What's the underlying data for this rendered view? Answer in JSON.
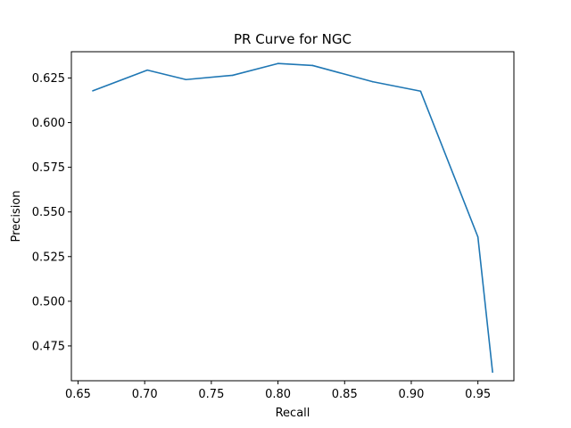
{
  "chart_data": {
    "type": "line",
    "title": "PR Curve for NGC",
    "xlabel": "Recall",
    "ylabel": "Precision",
    "xlim": [
      0.645,
      0.977
    ],
    "ylim": [
      0.4555,
      0.6397
    ],
    "grid": false,
    "xticks": [
      0.65,
      0.7,
      0.75,
      0.8,
      0.85,
      0.9,
      0.95
    ],
    "xtick_labels": [
      "0.65",
      "0.70",
      "0.75",
      "0.80",
      "0.85",
      "0.90",
      "0.95"
    ],
    "yticks": [
      0.475,
      0.5,
      0.525,
      0.55,
      0.575,
      0.6,
      0.625
    ],
    "ytick_labels": [
      "0.475",
      "0.500",
      "0.525",
      "0.550",
      "0.575",
      "0.600",
      "0.625"
    ],
    "series": [
      {
        "color": "#1f77b4",
        "x": [
          0.661,
          0.702,
          0.731,
          0.766,
          0.8,
          0.826,
          0.871,
          0.907,
          0.95,
          0.961
        ],
        "y": [
          0.6178,
          0.6294,
          0.6241,
          0.6265,
          0.6331,
          0.632,
          0.6229,
          0.6176,
          0.536,
          0.4603
        ]
      }
    ]
  }
}
